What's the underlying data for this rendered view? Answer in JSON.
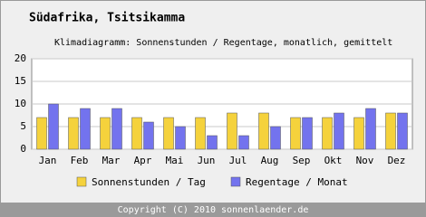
{
  "chart_data": {
    "type": "bar",
    "title": "Südafrika, Tsitsikamma",
    "subtitle": "Klimadiagramm: Sonnenstunden / Regentage, monatlich, gemittelt",
    "categories": [
      "Jan",
      "Feb",
      "Mar",
      "Apr",
      "Mai",
      "Jun",
      "Jul",
      "Aug",
      "Sep",
      "Okt",
      "Nov",
      "Dez"
    ],
    "series": [
      {
        "name": "Sonnenstunden / Tag",
        "color": "#f5d23c",
        "values": [
          7,
          7,
          7,
          7,
          7,
          7,
          8,
          8,
          7,
          7,
          7,
          8
        ]
      },
      {
        "name": "Regentage / Monat",
        "color": "#7373ee",
        "values": [
          10,
          9,
          9,
          6,
          5,
          3,
          3,
          5,
          7,
          8,
          9,
          8
        ]
      }
    ],
    "ylim": [
      0,
      20
    ],
    "yticks": [
      0,
      5,
      10,
      15,
      20
    ],
    "grid": true
  },
  "footer": "Copyright (C) 2010 sonnenlaender.de"
}
